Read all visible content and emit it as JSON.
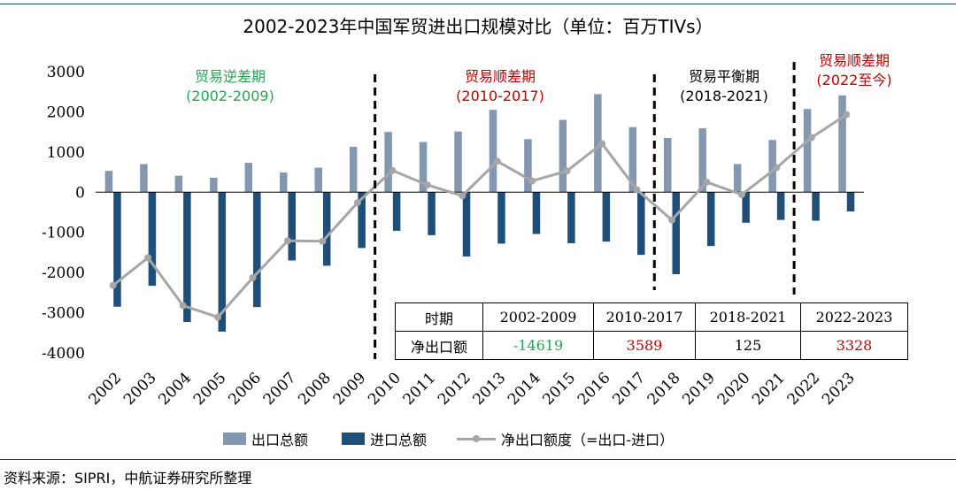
{
  "title": "2002-2023年中国军贸进出口规模对比（单位：百万TIVs）",
  "source": "资料来源：SIPRI，中航证券研究所整理",
  "colors": {
    "export": "#8497b0",
    "import": "#1f4e79",
    "net": "#a6a6a6",
    "green": "#22a650",
    "red": "#c00000",
    "black": "#000000"
  },
  "periods": [
    {
      "name": "贸易逆差期",
      "years": "(2002-2009)",
      "color": "green"
    },
    {
      "name": "贸易顺差期",
      "years": "(2010-2017)",
      "color": "red"
    },
    {
      "name": "贸易平衡期",
      "years": "(2018-2021)",
      "color": "black"
    },
    {
      "name": "贸易顺差期",
      "years": "(2022至今)",
      "color": "red"
    }
  ],
  "table": {
    "headers": [
      "时期",
      "2002-2009",
      "2010-2017",
      "2018-2021",
      "2022-2023"
    ],
    "row_label": "净出口额",
    "values": [
      {
        "text": "-14619",
        "color": "green"
      },
      {
        "text": "3589",
        "color": "red"
      },
      {
        "text": "125",
        "color": "black"
      },
      {
        "text": "3328",
        "color": "red"
      }
    ]
  },
  "legend": {
    "export": "出口总额",
    "import": "进口总额",
    "net": "净出口额度（=出口-进口）"
  },
  "chart_data": {
    "type": "bar",
    "title": "2002-2023年中国军贸进出口规模对比（单位：百万TIVs）",
    "categories": [
      "2002",
      "2003",
      "2004",
      "2005",
      "2006",
      "2007",
      "2008",
      "2009",
      "2010",
      "2011",
      "2012",
      "2013",
      "2014",
      "2015",
      "2016",
      "2017",
      "2018",
      "2019",
      "2020",
      "2021",
      "2022",
      "2023"
    ],
    "series": [
      {
        "name": "出口总额",
        "type": "bar",
        "values": [
          530,
          700,
          410,
          360,
          730,
          490,
          610,
          1130,
          1500,
          1250,
          1510,
          2050,
          1320,
          1800,
          2440,
          1620,
          1350,
          1590,
          700,
          1300,
          2070,
          2410
        ]
      },
      {
        "name": "进口总额",
        "type": "bar",
        "values": [
          -2850,
          -2330,
          -3230,
          -3470,
          -2860,
          -1700,
          -1830,
          -1390,
          -960,
          -1070,
          -1600,
          -1280,
          -1040,
          -1270,
          -1230,
          -1560,
          -2040,
          -1340,
          -760,
          -690,
          -710,
          -480
        ]
      },
      {
        "name": "净出口额度（=出口-进口）",
        "type": "line",
        "values": [
          -2320,
          -1630,
          -2820,
          -3110,
          -2130,
          -1210,
          -1220,
          -260,
          540,
          180,
          -90,
          770,
          280,
          530,
          1210,
          60,
          -690,
          250,
          -60,
          610,
          1360,
          1930
        ]
      }
    ],
    "ylim": [
      -4000,
      3000
    ],
    "yticks": [
      3000,
      2000,
      1000,
      0,
      -1000,
      -2000,
      -3000,
      -4000
    ],
    "xlabel": "",
    "ylabel": "",
    "grid": false,
    "legend_position": "bottom"
  }
}
